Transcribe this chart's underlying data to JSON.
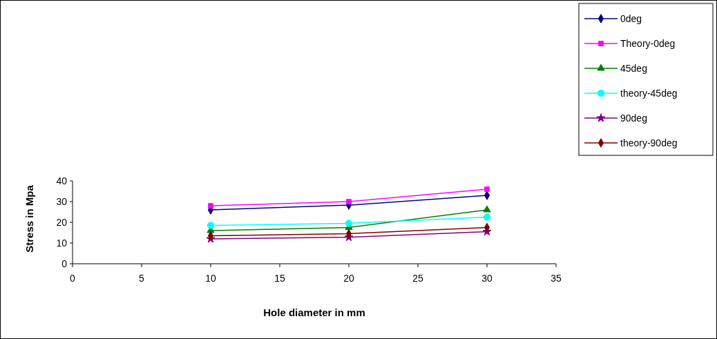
{
  "chart_data": {
    "type": "line",
    "xlabel": "Hole diameter in mm",
    "ylabel": "Stress in Mpa",
    "xlim": [
      0,
      35
    ],
    "xticks": [
      0,
      5,
      10,
      15,
      20,
      25,
      30,
      35
    ],
    "ylim": [
      0,
      40
    ],
    "yticks": [
      0,
      10,
      20,
      30,
      40
    ],
    "legend": "top right",
    "grid": false,
    "series": [
      {
        "name": "0deg",
        "color": "#000080",
        "marker": "diamond",
        "x": [
          10,
          20,
          30
        ],
        "values": [
          26,
          28.3,
          33
        ]
      },
      {
        "name": "Theory-0deg",
        "color": "#ff00ff",
        "marker": "square",
        "x": [
          10,
          20,
          30
        ],
        "values": [
          28,
          30,
          36
        ]
      },
      {
        "name": "45deg",
        "color": "#008000",
        "marker": "triangle",
        "x": [
          10,
          20,
          30
        ],
        "values": [
          16,
          17.5,
          26
        ]
      },
      {
        "name": "theory-45deg",
        "color": "#00ffff",
        "marker": "circle",
        "x": [
          10,
          20,
          30
        ],
        "values": [
          18.5,
          19.5,
          22.5
        ]
      },
      {
        "name": "90deg",
        "color": "#800080",
        "marker": "star",
        "x": [
          10,
          20,
          30
        ],
        "values": [
          12,
          12.8,
          15.5
        ]
      },
      {
        "name": "theory-90deg",
        "color": "#800000",
        "marker": "diamond",
        "x": [
          10,
          20,
          30
        ],
        "values": [
          13.5,
          14.5,
          17.5
        ]
      }
    ]
  }
}
